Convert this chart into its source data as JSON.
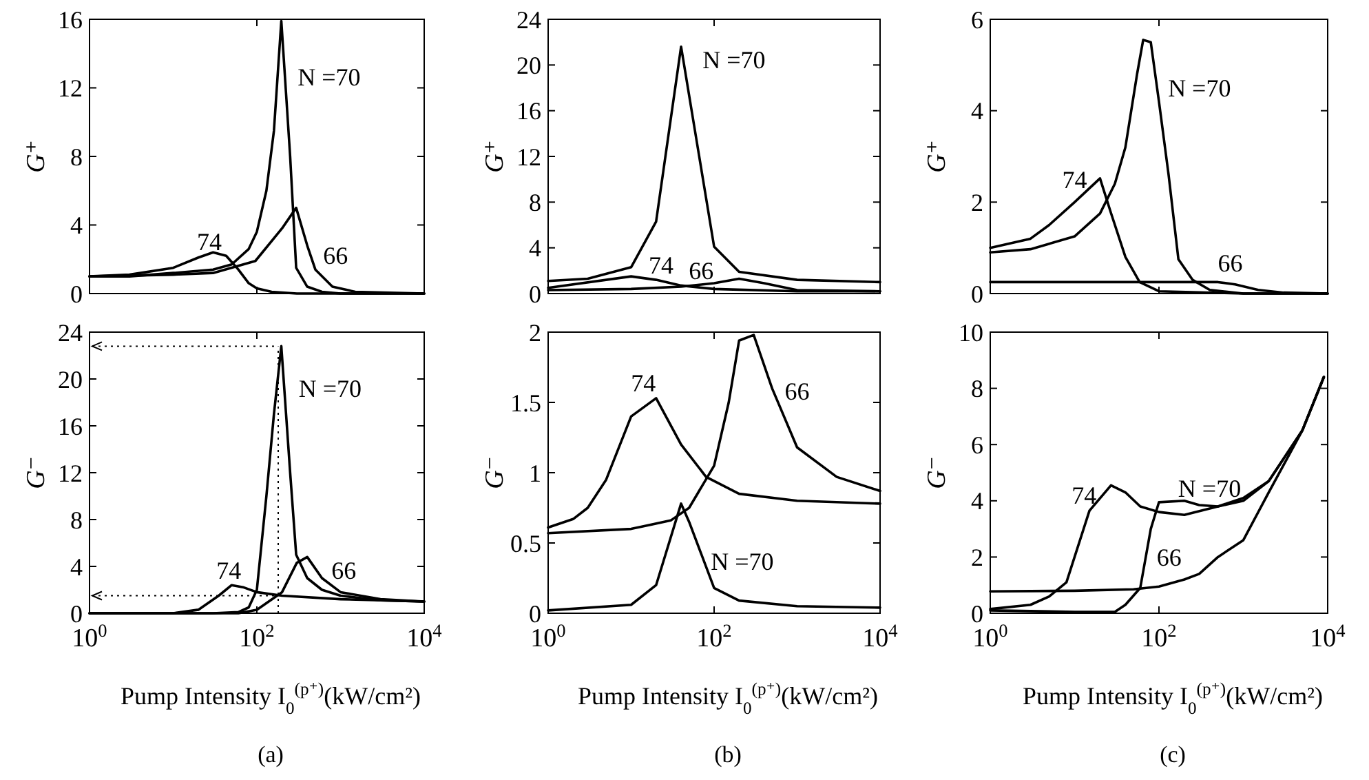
{
  "chart_data": [
    {
      "type": "line",
      "ylabel": "G⁺",
      "log": "x",
      "xlim": [
        1,
        10000
      ],
      "ylim": [
        0,
        16
      ],
      "tick_labels": "y",
      "xticks": [
        {
          "value": 1,
          "label": null
        },
        {
          "value": 100,
          "label": null
        },
        {
          "value": 10000,
          "label": null
        }
      ],
      "yticks": [
        0,
        4,
        8,
        12,
        16
      ],
      "series": [
        {
          "name": "N =70",
          "color": "#000000",
          "x": [
            1,
            3,
            10,
            30,
            50,
            80,
            100,
            130,
            160,
            196,
            250,
            295,
            400,
            600,
            1000,
            3000,
            10000
          ],
          "values": [
            1.0,
            1.0,
            1.2,
            1.4,
            1.7,
            2.6,
            3.6,
            6,
            9.5,
            15.9,
            8,
            1.5,
            0.4,
            0.1,
            0,
            0,
            0
          ]
        },
        {
          "name": "74",
          "color": "#000000",
          "x": [
            1,
            3,
            10,
            20,
            30,
            43,
            60,
            80,
            100,
            150,
            300,
            10000
          ],
          "values": [
            1.0,
            1.1,
            1.5,
            2.1,
            2.4,
            2.2,
            1.4,
            0.6,
            0.3,
            0.1,
            0,
            0
          ]
        },
        {
          "name": "66",
          "color": "#000000",
          "x": [
            1,
            10,
            30,
            96,
            200,
            295,
            400,
            500,
            800,
            1500,
            10000
          ],
          "values": [
            1.0,
            1.1,
            1.2,
            1.9,
            3.8,
            5.0,
            2.8,
            1.4,
            0.4,
            0.1,
            0
          ]
        }
      ]
    },
    {
      "type": "line",
      "ylabel": "G⁺",
      "log": "x",
      "xlim": [
        1,
        10000
      ],
      "ylim": [
        0,
        24
      ],
      "tick_labels": "y",
      "xticks": [
        {
          "value": 1,
          "label": null
        },
        {
          "value": 100,
          "label": null
        },
        {
          "value": 10000,
          "label": null
        }
      ],
      "yticks": [
        0,
        4,
        8,
        12,
        16,
        20,
        24
      ],
      "series": [
        {
          "name": "N =70",
          "color": "#000000",
          "x": [
            1,
            3,
            10,
            20,
            40,
            100,
            200,
            1000,
            10000
          ],
          "values": [
            1.1,
            1.3,
            2.3,
            6.3,
            21.6,
            4.1,
            1.9,
            1.2,
            1.0
          ]
        },
        {
          "name": "74",
          "color": "#000000",
          "x": [
            1,
            10,
            20,
            40,
            100,
            1000,
            10000
          ],
          "values": [
            0.5,
            1.5,
            1.2,
            0.7,
            0.4,
            0.2,
            0.2
          ]
        },
        {
          "name": "66",
          "color": "#000000",
          "x": [
            1,
            10,
            40,
            100,
            200,
            400,
            1000,
            10000
          ],
          "values": [
            0.3,
            0.4,
            0.6,
            0.9,
            1.3,
            0.9,
            0.3,
            0.2
          ]
        }
      ]
    },
    {
      "type": "line",
      "ylabel": "G⁺",
      "log": "x",
      "xlim": [
        1,
        10000
      ],
      "ylim": [
        0,
        6
      ],
      "tick_labels": "y",
      "xticks": [
        {
          "value": 1,
          "label": null
        },
        {
          "value": 100,
          "label": null
        },
        {
          "value": 10000,
          "label": null
        }
      ],
      "yticks": [
        0,
        2,
        4,
        6
      ],
      "series": [
        {
          "name": "N =70",
          "color": "#000000",
          "x": [
            1,
            3,
            10,
            20,
            30,
            40,
            55,
            65,
            80,
            100,
            130,
            170,
            250,
            400,
            1000,
            10000
          ],
          "values": [
            0.9,
            0.97,
            1.25,
            1.75,
            2.4,
            3.2,
            4.8,
            5.55,
            5.5,
            4.2,
            2.6,
            0.75,
            0.3,
            0.08,
            0,
            0
          ]
        },
        {
          "name": "74",
          "color": "#000000",
          "x": [
            1,
            3,
            5,
            10,
            20,
            27,
            40,
            59,
            100,
            1000,
            10000
          ],
          "values": [
            1.0,
            1.2,
            1.5,
            2.0,
            2.52,
            1.76,
            0.8,
            0.25,
            0.05,
            0,
            0
          ]
        },
        {
          "name": "66",
          "color": "#000000",
          "x": [
            1,
            300,
            500,
            800,
            1500,
            3000,
            10000
          ],
          "values": [
            0.25,
            0.25,
            0.25,
            0.2,
            0.08,
            0.02,
            0
          ]
        }
      ]
    },
    {
      "type": "line",
      "ylabel": "G⁻",
      "xlabel": "Pump Intensity I$_{0}$$^{(p⁺)}$(kW/cm²)",
      "log": "x",
      "xlim": [
        1,
        10000
      ],
      "ylim": [
        0,
        24
      ],
      "xticks": [
        {
          "value": 1,
          "label": "10$^{0}$"
        },
        {
          "value": 100,
          "label": "10$^{2}$"
        },
        {
          "value": 10000,
          "label": "10$^{4}$"
        }
      ],
      "yticks": [
        0,
        4,
        8,
        12,
        16,
        20,
        24
      ],
      "series": [
        {
          "name": "N =70",
          "color": "#000000",
          "x": [
            1,
            30,
            60,
            80,
            100,
            130,
            160,
            196,
            250,
            295,
            400,
            600,
            1000,
            3000,
            10000
          ],
          "values": [
            0,
            0,
            0.1,
            0.5,
            2,
            10,
            17,
            22.8,
            12,
            5,
            3,
            2,
            1.5,
            1.1,
            1.0
          ]
        },
        {
          "name": "74",
          "color": "#000000",
          "x": [
            1,
            10,
            20,
            35,
            50,
            70,
            100,
            200,
            1000,
            10000
          ],
          "values": [
            0,
            0,
            0.3,
            1.5,
            2.4,
            2.2,
            1.8,
            1.5,
            1.2,
            1.0
          ]
        },
        {
          "name": "66",
          "color": "#000000",
          "x": [
            1,
            60,
            100,
            200,
            300,
            400,
            600,
            1000,
            3000,
            10000
          ],
          "values": [
            0,
            0,
            0.3,
            1.8,
            4.3,
            4.8,
            3,
            1.8,
            1.2,
            1.0
          ]
        }
      ],
      "ref_lines": [
        {
          "axis": "y",
          "value": 22.8,
          "line_style": "dotted"
        },
        {
          "axis": "y",
          "value": 1.5,
          "line_style": "dotted"
        },
        {
          "axis": "x",
          "value": 180,
          "line_style": "dotted"
        }
      ],
      "annotations": [
        "(a)"
      ]
    },
    {
      "type": "line",
      "ylabel": "G⁻",
      "xlabel": "Pump Intensity I$_{0}$$^{(p⁺)}$(kW/cm²)",
      "log": "x",
      "xlim": [
        1,
        10000
      ],
      "ylim": [
        0,
        2
      ],
      "xticks": [
        {
          "value": 1,
          "label": "10$^{0}$"
        },
        {
          "value": 100,
          "label": "10$^{2}$"
        },
        {
          "value": 10000,
          "label": "10$^{4}$"
        }
      ],
      "yticks": [
        0,
        0.5,
        1,
        1.5,
        2
      ],
      "series": [
        {
          "name": "N =70",
          "color": "#000000",
          "x": [
            1,
            10,
            20,
            40,
            50,
            100,
            200,
            1000,
            10000
          ],
          "values": [
            0.02,
            0.06,
            0.2,
            0.78,
            0.65,
            0.18,
            0.09,
            0.05,
            0.04
          ]
        },
        {
          "name": "74",
          "color": "#000000",
          "x": [
            1,
            2,
            3,
            5,
            10,
            20,
            40,
            80,
            200,
            1000,
            10000
          ],
          "values": [
            0.61,
            0.67,
            0.75,
            0.95,
            1.4,
            1.53,
            1.2,
            0.97,
            0.85,
            0.8,
            0.78
          ]
        },
        {
          "name": "66",
          "color": "#000000",
          "x": [
            1,
            10,
            30,
            50,
            100,
            150,
            200,
            300,
            500,
            1000,
            3000,
            10000
          ],
          "values": [
            0.57,
            0.6,
            0.66,
            0.75,
            1.05,
            1.5,
            1.94,
            1.98,
            1.6,
            1.18,
            0.97,
            0.87
          ]
        }
      ],
      "annotations": [
        "(b)"
      ]
    },
    {
      "type": "line",
      "ylabel": "G⁻",
      "xlabel": "Pump Intensity I$_{0}$$^{(p⁺)}$(kW/cm²)",
      "log": "x",
      "xlim": [
        1,
        10000
      ],
      "ylim": [
        0,
        10
      ],
      "xticks": [
        {
          "value": 1,
          "label": "10$^{0}$"
        },
        {
          "value": 100,
          "label": "10$^{2}$"
        },
        {
          "value": 10000,
          "label": "10$^{4}$"
        }
      ],
      "yticks": [
        0,
        2,
        4,
        6,
        8,
        10
      ],
      "series": [
        {
          "name": "N =70",
          "color": "#000000",
          "x": [
            1,
            10,
            30,
            40,
            60,
            80,
            100,
            200,
            300,
            500,
            1000,
            2000,
            5000,
            9000
          ],
          "values": [
            0.1,
            0.05,
            0.05,
            0.3,
            0.9,
            3.0,
            3.95,
            4.0,
            3.85,
            3.8,
            4.1,
            4.7,
            6.5,
            8.4
          ]
        },
        {
          "name": "74",
          "color": "#000000",
          "x": [
            1,
            3,
            5,
            8,
            15,
            27,
            40,
            60,
            100,
            200,
            500,
            1000,
            2000,
            5000,
            9000
          ],
          "values": [
            0.15,
            0.3,
            0.6,
            1.1,
            3.65,
            4.55,
            4.3,
            3.8,
            3.6,
            3.5,
            3.8,
            4.0,
            4.7,
            6.5,
            8.4
          ]
        },
        {
          "name": "66",
          "color": "#000000",
          "x": [
            1,
            10,
            50,
            100,
            200,
            300,
            500,
            1000,
            2000,
            5000,
            9000
          ],
          "values": [
            0.78,
            0.8,
            0.85,
            0.95,
            1.2,
            1.4,
            2.0,
            2.6,
            4.3,
            6.5,
            8.4
          ]
        }
      ],
      "annotations": [
        "(c)"
      ]
    }
  ]
}
